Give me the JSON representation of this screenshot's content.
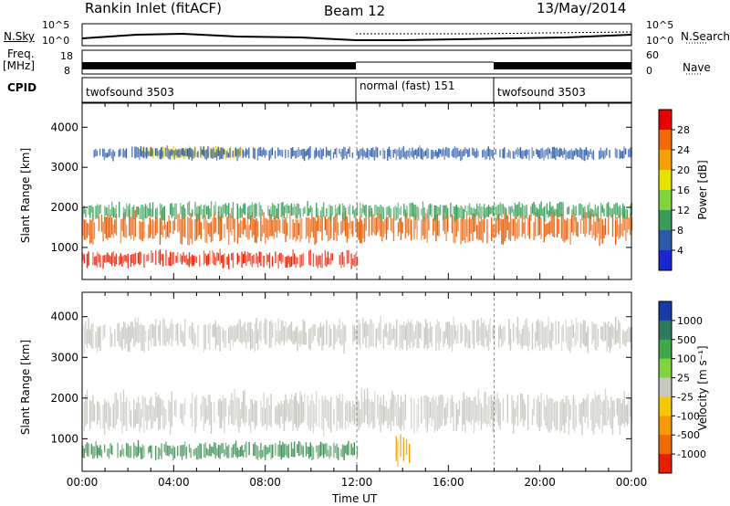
{
  "header": {
    "station": "Rankin Inlet (fitACF)",
    "beam": "Beam 12",
    "date": "13/May/2014"
  },
  "noise_panel": {
    "left_label": "N.Sky",
    "right_label": "N.Search",
    "tick_top": "10^5",
    "tick_bottom": "10^0"
  },
  "freq_panel": {
    "left_label_1": "Freq.",
    "left_label_2": "[MHz]",
    "left_tick_top": "18",
    "left_tick_bottom": "8",
    "right_label": "Nave",
    "right_tick_top": "60",
    "right_tick_bottom": "0"
  },
  "cpid_panel": {
    "label": "CPID",
    "modes": [
      {
        "name": "twofsound 3503",
        "start_hour": 0,
        "end_hour": 12
      },
      {
        "name": "normal (fast) 151",
        "start_hour": 12,
        "end_hour": 18
      },
      {
        "name": "twofsound 3503",
        "start_hour": 18,
        "end_hour": 24
      }
    ]
  },
  "chart_data": [
    {
      "type": "heatmap",
      "parameter": "power",
      "ylabel": "Slant Range [km]",
      "xlim": [
        0,
        24
      ],
      "ylim": [
        200,
        4600
      ],
      "yticks": [
        "1000",
        "2000",
        "3000",
        "4000"
      ],
      "colorbar": {
        "label": "Power [dB]",
        "ticks": [
          "28",
          "24",
          "20",
          "16",
          "12",
          "8",
          "4"
        ],
        "colors": [
          "#e80000",
          "#f56a00",
          "#f7a100",
          "#e8e000",
          "#7ed43a",
          "#3a9e5a",
          "#2b5aa8",
          "#1a26d0"
        ]
      },
      "bands": [
        {
          "range_km": [
            1150,
            1850
          ],
          "start_hour": 0,
          "end_hour": 24,
          "color": "#e85a00"
        },
        {
          "range_km": [
            1700,
            2100
          ],
          "start_hour": 0,
          "end_hour": 24,
          "color": "#3a9e5a"
        },
        {
          "range_km": [
            500,
            900
          ],
          "start_hour": 0,
          "end_hour": 12,
          "color": "#e81e00"
        },
        {
          "range_km": [
            3200,
            3500
          ],
          "start_hour": 2.5,
          "end_hour": 7,
          "color": "#e8d000"
        },
        {
          "range_km": [
            3200,
            3500
          ],
          "start_hour": 0.5,
          "end_hour": 24,
          "color": "#2b5aa8"
        }
      ]
    },
    {
      "type": "heatmap",
      "parameter": "velocity",
      "xlabel": "Time UT",
      "ylabel": "Slant Range [km]",
      "xlim": [
        0,
        24
      ],
      "ylim": [
        200,
        4600
      ],
      "xticks": [
        "00:00",
        "04:00",
        "08:00",
        "12:00",
        "16:00",
        "20:00",
        "00:00"
      ],
      "yticks": [
        "1000",
        "2000",
        "3000",
        "4000"
      ],
      "colorbar": {
        "label": "Velocity [m s⁻¹]",
        "ticks": [
          "1000",
          "500",
          "100",
          "25",
          "-25",
          "-100",
          "-500",
          "-1000"
        ],
        "colors": [
          "#1a3aa8",
          "#2e7a5a",
          "#3fa84a",
          "#7ed43a",
          "#c8c8c0",
          "#f7c800",
          "#f59a00",
          "#f06a00",
          "#e81e00"
        ]
      },
      "bands": [
        {
          "range_km": [
            1200,
            2100
          ],
          "start_hour": 0,
          "end_hour": 24,
          "color": "#c8c8c0"
        },
        {
          "range_km": [
            500,
            900
          ],
          "start_hour": 0,
          "end_hour": 12,
          "color": "#3a8e50"
        },
        {
          "range_km": [
            400,
            1100
          ],
          "start_hour": 13.7,
          "end_hour": 14.3,
          "color": "#f59a00"
        },
        {
          "range_km": [
            3200,
            3900
          ],
          "start_hour": 0,
          "end_hour": 24,
          "color": "#c8c8c0"
        }
      ]
    }
  ]
}
